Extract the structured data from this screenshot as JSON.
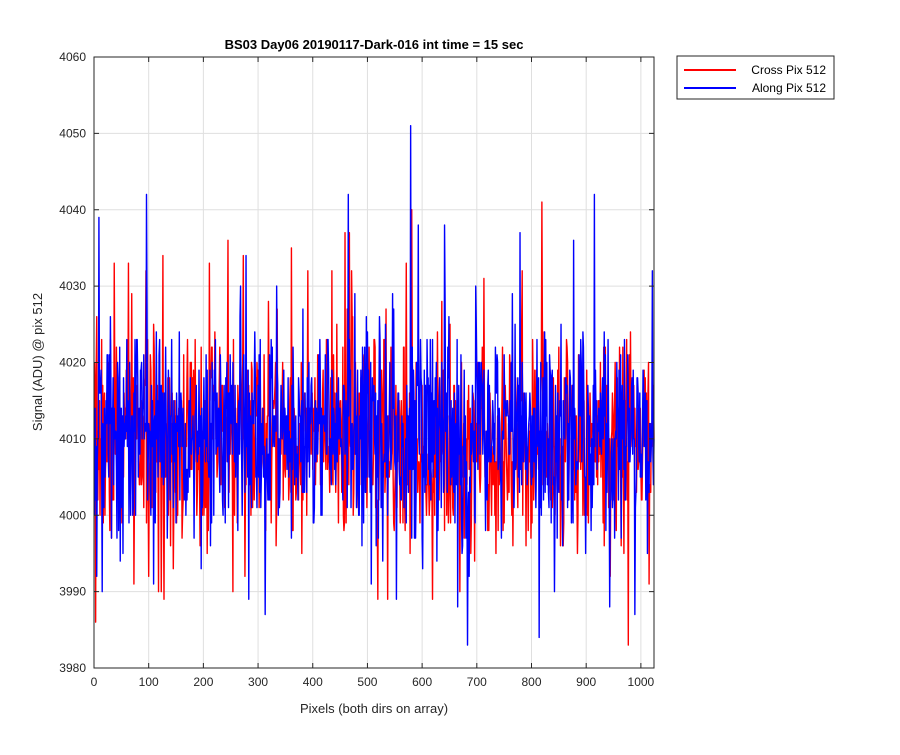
{
  "chart_data": {
    "type": "line",
    "title": "BS03 Day06 20190117-Dark-016 int time = 15 sec",
    "xlabel": "Pixels (both dirs on array)",
    "ylabel": "Signal (ADU) @ pix 512",
    "xlim": [
      0,
      1024
    ],
    "ylim": [
      3980,
      4060
    ],
    "xticks": [
      0,
      100,
      200,
      300,
      400,
      500,
      600,
      700,
      800,
      900,
      1000
    ],
    "yticks": [
      3980,
      3990,
      4000,
      4010,
      4020,
      4030,
      4040,
      4050,
      4060
    ],
    "grid": true,
    "legend_position": "outside-top-right",
    "series": [
      {
        "name": "Cross Pix 512",
        "color": "#ff0000",
        "stats": {
          "n_points": 1024,
          "mean": 4010,
          "noise_sd": 7,
          "seed": 7
        },
        "spikes": [
          {
            "x": 2,
            "y": 3986
          },
          {
            "x": 36,
            "y": 4033
          },
          {
            "x": 62,
            "y": 4033
          },
          {
            "x": 72,
            "y": 3991
          },
          {
            "x": 122,
            "y": 3990
          },
          {
            "x": 125,
            "y": 4034
          },
          {
            "x": 127,
            "y": 3989
          },
          {
            "x": 210,
            "y": 4033
          },
          {
            "x": 244,
            "y": 4036
          },
          {
            "x": 272,
            "y": 4034
          },
          {
            "x": 360,
            "y": 4035
          },
          {
            "x": 458,
            "y": 4037
          },
          {
            "x": 466,
            "y": 4037
          },
          {
            "x": 470,
            "y": 4032
          },
          {
            "x": 518,
            "y": 3989
          },
          {
            "x": 536,
            "y": 3989
          },
          {
            "x": 570,
            "y": 4033
          },
          {
            "x": 580,
            "y": 4040
          },
          {
            "x": 618,
            "y": 3989
          },
          {
            "x": 712,
            "y": 4031
          },
          {
            "x": 734,
            "y": 3995
          },
          {
            "x": 818,
            "y": 4041
          },
          {
            "x": 852,
            "y": 3996
          },
          {
            "x": 976,
            "y": 3983
          },
          {
            "x": 1014,
            "y": 3991
          }
        ]
      },
      {
        "name": "Along Pix 512",
        "color": "#0000ff",
        "stats": {
          "n_points": 1024,
          "mean": 4011,
          "noise_sd": 7,
          "seed": 13
        },
        "spikes": [
          {
            "x": 4,
            "y": 3992
          },
          {
            "x": 8,
            "y": 4039
          },
          {
            "x": 14,
            "y": 3990
          },
          {
            "x": 95,
            "y": 4042
          },
          {
            "x": 108,
            "y": 3991
          },
          {
            "x": 282,
            "y": 3989
          },
          {
            "x": 312,
            "y": 3987
          },
          {
            "x": 464,
            "y": 4042
          },
          {
            "x": 552,
            "y": 3989
          },
          {
            "x": 578,
            "y": 4051
          },
          {
            "x": 592,
            "y": 4038
          },
          {
            "x": 640,
            "y": 4038
          },
          {
            "x": 664,
            "y": 3988
          },
          {
            "x": 682,
            "y": 3983
          },
          {
            "x": 778,
            "y": 4037
          },
          {
            "x": 813,
            "y": 3984
          },
          {
            "x": 876,
            "y": 4036
          },
          {
            "x": 914,
            "y": 4042
          },
          {
            "x": 942,
            "y": 3988
          },
          {
            "x": 988,
            "y": 3987
          },
          {
            "x": 1020,
            "y": 4032
          }
        ]
      }
    ]
  }
}
